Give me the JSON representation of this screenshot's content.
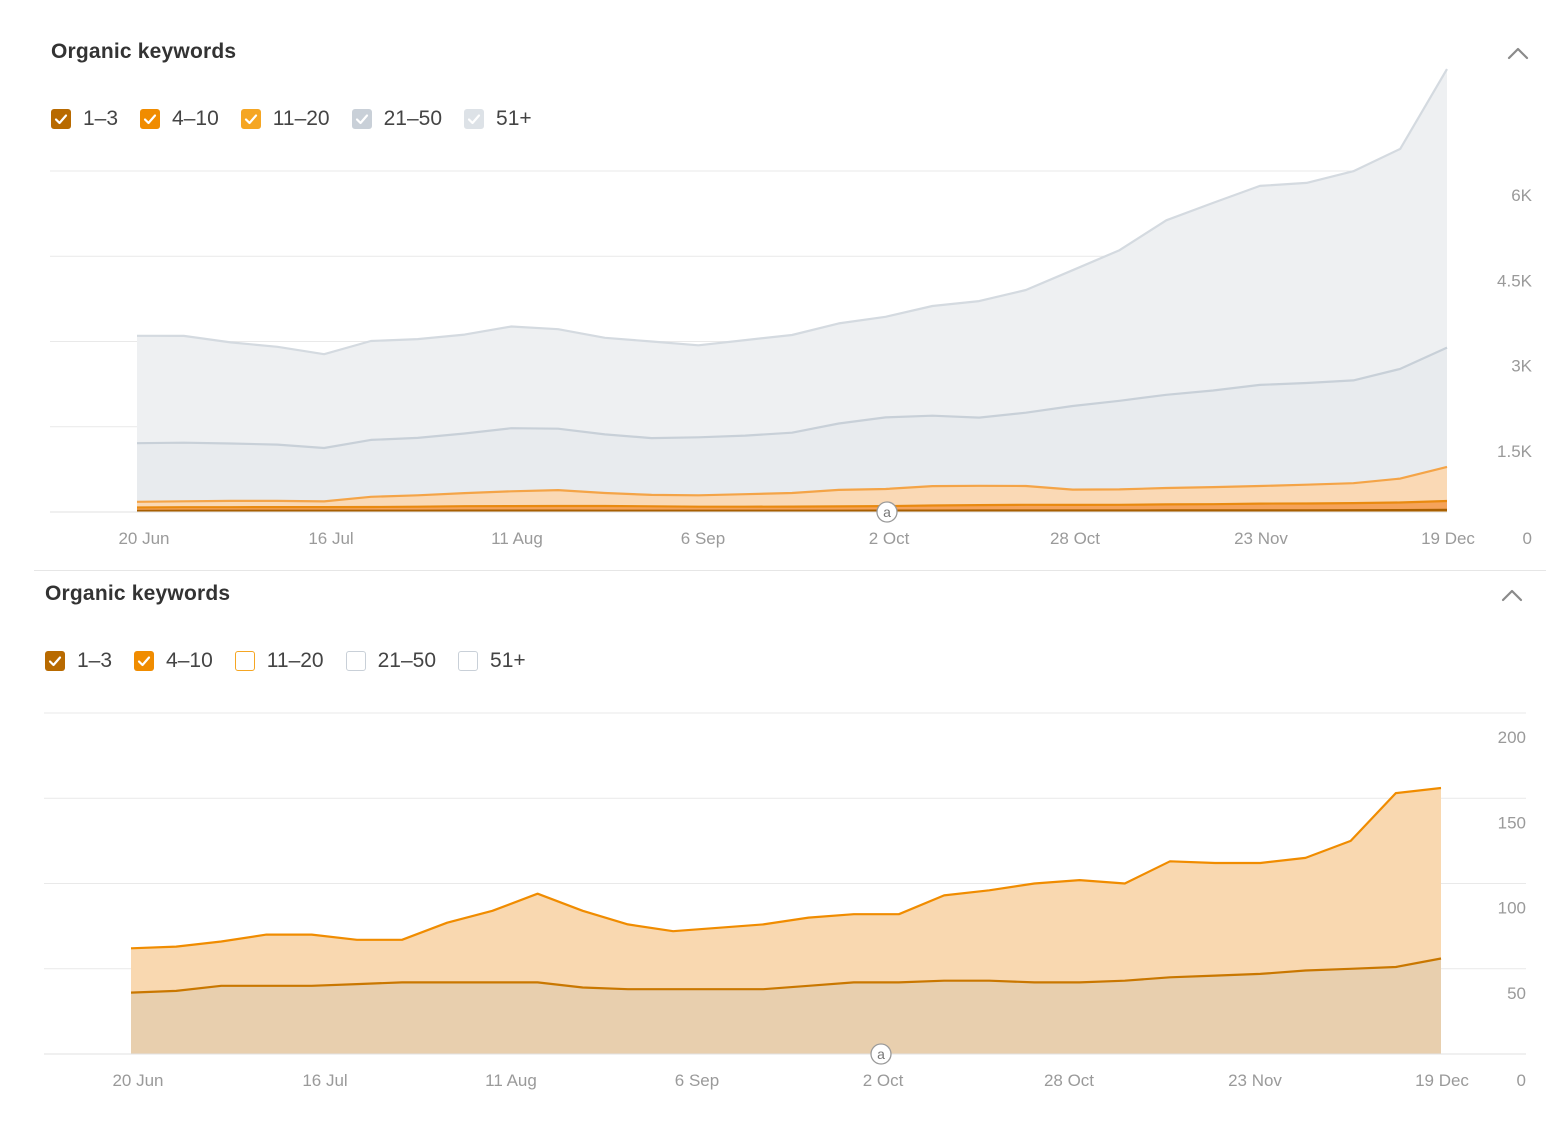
{
  "panels": [
    {
      "title": "Organic keywords",
      "legend": [
        {
          "label": "1–3",
          "checked": true,
          "color": "#b86a00"
        },
        {
          "label": "4–10",
          "checked": true,
          "color": "#f08c00"
        },
        {
          "label": "11–20",
          "checked": true,
          "color": "#f5a623"
        },
        {
          "label": "21–50",
          "checked": true,
          "color": "#c9d0d8"
        },
        {
          "label": "51+",
          "checked": true,
          "color": "#dde2e7"
        }
      ]
    },
    {
      "title": "Organic keywords",
      "legend": [
        {
          "label": "1–3",
          "checked": true,
          "color": "#b86a00"
        },
        {
          "label": "4–10",
          "checked": true,
          "color": "#f08c00"
        },
        {
          "label": "11–20",
          "checked": false,
          "color": "#f5a623"
        },
        {
          "label": "21–50",
          "checked": false,
          "color": "#c9d0d8"
        },
        {
          "label": "51+",
          "checked": false,
          "color": "#c9d0d8"
        }
      ]
    }
  ],
  "chart_data": [
    {
      "type": "area",
      "stacked": true,
      "x": [
        "20 Jun",
        "27 Jun",
        "4 Jul",
        "11 Jul",
        "16 Jul",
        "23 Jul",
        "30 Jul",
        "6 Aug",
        "11 Aug",
        "18 Aug",
        "25 Aug",
        "1 Sep",
        "6 Sep",
        "13 Sep",
        "20 Sep",
        "27 Sep",
        "2 Oct",
        "9 Oct",
        "16 Oct",
        "23 Oct",
        "28 Oct",
        "4 Nov",
        "11 Nov",
        "18 Nov",
        "23 Nov",
        "30 Nov",
        "7 Dec",
        "14 Dec",
        "19 Dec"
      ],
      "xticks": [
        "20 Jun",
        "16 Jul",
        "11 Aug",
        "6 Sep",
        "2 Oct",
        "28 Oct",
        "23 Nov",
        "19 Dec"
      ],
      "yticks": [
        "6K",
        "4.5K",
        "3K",
        "1.5K",
        "0"
      ],
      "ylim": [
        0,
        6000
      ],
      "grid": true,
      "series": [
        {
          "name": "1–3",
          "color": "#b86a00",
          "values": [
            20,
            22,
            22,
            22,
            22,
            22,
            23,
            24,
            24,
            24,
            23,
            22,
            22,
            22,
            22,
            23,
            24,
            25,
            26,
            27,
            27,
            27,
            28,
            28,
            29,
            30,
            31,
            33,
            38
          ]
        },
        {
          "name": "4–10",
          "color": "#f08c00",
          "values": [
            60,
            62,
            63,
            64,
            64,
            66,
            70,
            78,
            80,
            82,
            82,
            78,
            72,
            72,
            73,
            75,
            80,
            90,
            95,
            100,
            98,
            100,
            105,
            110,
            118,
            120,
            125,
            135,
            155
          ]
        },
        {
          "name": "11–20",
          "color": "#f5a623",
          "values": [
            100,
            105,
            110,
            110,
            100,
            180,
            200,
            230,
            260,
            280,
            230,
            200,
            200,
            220,
            240,
            290,
            300,
            340,
            340,
            330,
            270,
            270,
            290,
            300,
            310,
            330,
            350,
            420,
            600
          ]
        },
        {
          "name": "21–50",
          "color": "#c9d0d8",
          "values": [
            1030,
            1030,
            1010,
            990,
            940,
            1000,
            1010,
            1050,
            1110,
            1080,
            1030,
            1000,
            1020,
            1030,
            1060,
            1170,
            1260,
            1240,
            1200,
            1290,
            1470,
            1560,
            1640,
            1700,
            1780,
            1790,
            1810,
            1930,
            2100
          ]
        },
        {
          "name": "51+",
          "color": "#dde2e7",
          "values": [
            1890,
            1880,
            1780,
            1720,
            1650,
            1740,
            1740,
            1740,
            1790,
            1750,
            1700,
            1700,
            1620,
            1680,
            1720,
            1760,
            1770,
            1930,
            2050,
            2160,
            2390,
            2650,
            3070,
            3300,
            3500,
            3520,
            3680,
            3870,
            4900
          ]
        }
      ]
    },
    {
      "type": "area",
      "stacked": true,
      "x": [
        "20 Jun",
        "27 Jun",
        "4 Jul",
        "11 Jul",
        "16 Jul",
        "23 Jul",
        "30 Jul",
        "6 Aug",
        "11 Aug",
        "18 Aug",
        "25 Aug",
        "1 Sep",
        "6 Sep",
        "13 Sep",
        "20 Sep",
        "27 Sep",
        "2 Oct",
        "9 Oct",
        "16 Oct",
        "23 Oct",
        "28 Oct",
        "4 Nov",
        "11 Nov",
        "18 Nov",
        "23 Nov",
        "30 Nov",
        "7 Dec",
        "14 Dec",
        "17 Dec",
        "19 Dec"
      ],
      "xticks": [
        "20 Jun",
        "16 Jul",
        "11 Aug",
        "6 Sep",
        "2 Oct",
        "28 Oct",
        "23 Nov",
        "19 Dec"
      ],
      "yticks": [
        "200",
        "150",
        "100",
        "50",
        "0"
      ],
      "ylim": [
        0,
        200
      ],
      "grid": true,
      "series": [
        {
          "name": "1–3",
          "color": "#b86a00",
          "values": [
            36,
            37,
            40,
            40,
            40,
            41,
            42,
            42,
            42,
            42,
            39,
            38,
            38,
            38,
            38,
            40,
            42,
            42,
            43,
            43,
            42,
            42,
            43,
            45,
            46,
            47,
            49,
            50,
            51,
            56
          ]
        },
        {
          "name": "4–10",
          "color": "#f08c00",
          "values": [
            26,
            26,
            26,
            30,
            30,
            26,
            25,
            35,
            42,
            52,
            45,
            38,
            34,
            36,
            38,
            40,
            40,
            40,
            50,
            53,
            58,
            60,
            57,
            68,
            66,
            65,
            66,
            75,
            102,
            100
          ]
        }
      ]
    }
  ]
}
